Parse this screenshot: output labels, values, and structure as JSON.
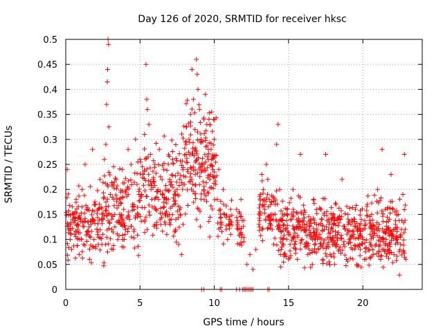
{
  "chart_data": {
    "type": "scatter",
    "title": "Day 126 of 2020, SRMTID for receiver hksc",
    "xlabel": "GPS time / hours",
    "ylabel": "SRMTID / TECUs",
    "xlim": [
      0,
      24
    ],
    "ylim": [
      0,
      0.5
    ],
    "x_ticks": [
      0,
      5,
      10,
      15,
      20
    ],
    "x_tick_labels": [
      "0",
      "5",
      "10",
      "15",
      "20"
    ],
    "y_ticks": [
      0,
      0.05,
      0.1,
      0.15,
      0.2,
      0.25,
      0.3,
      0.35,
      0.4,
      0.45,
      0.5
    ],
    "y_tick_labels": [
      "0",
      "0.05",
      "0.1",
      "0.15",
      "0.2",
      "0.25",
      "0.3",
      "0.35",
      "0.4",
      "0.45",
      "0.5"
    ],
    "grid": true,
    "marker": "+",
    "series": [
      {
        "name": "SRMTID",
        "color": "#ff0000",
        "points": [
          [
            0.1,
            0.24
          ],
          [
            0.2,
            0.13
          ],
          [
            0.3,
            0.1
          ],
          [
            0.4,
            0.08
          ],
          [
            0.5,
            0.15
          ],
          [
            0.6,
            0.11
          ],
          [
            0.7,
            0.18
          ],
          [
            0.8,
            0.12
          ],
          [
            0.9,
            0.07
          ],
          [
            1.0,
            0.14
          ],
          [
            1.1,
            0.2
          ],
          [
            1.2,
            0.09
          ],
          [
            1.3,
            0.25
          ],
          [
            1.4,
            0.16
          ],
          [
            1.5,
            0.11
          ],
          [
            1.6,
            0.06
          ],
          [
            1.7,
            0.13
          ],
          [
            1.8,
            0.28
          ],
          [
            1.9,
            0.1
          ],
          [
            2.0,
            0.17
          ],
          [
            2.1,
            0.12
          ],
          [
            2.2,
            0.09
          ],
          [
            2.3,
            0.22
          ],
          [
            2.4,
            0.14
          ],
          [
            2.5,
            0.11
          ],
          [
            2.6,
            0.26
          ],
          [
            2.7,
            0.29
          ],
          [
            2.75,
            0.37
          ],
          [
            2.8,
            0.415
          ],
          [
            2.82,
            0.44
          ],
          [
            2.85,
            0.5
          ],
          [
            2.88,
            0.49
          ],
          [
            2.9,
            0.325
          ],
          [
            3.0,
            0.19
          ],
          [
            3.1,
            0.12
          ],
          [
            3.2,
            0.08
          ],
          [
            3.3,
            0.15
          ],
          [
            3.4,
            0.22
          ],
          [
            3.5,
            0.1
          ],
          [
            3.6,
            0.18
          ],
          [
            3.7,
            0.13
          ],
          [
            3.8,
            0.24
          ],
          [
            3.9,
            0.16
          ],
          [
            4.0,
            0.11
          ],
          [
            4.1,
            0.2
          ],
          [
            4.2,
            0.28
          ],
          [
            4.3,
            0.14
          ],
          [
            4.4,
            0.25
          ],
          [
            4.5,
            0.17
          ],
          [
            4.6,
            0.12
          ],
          [
            4.7,
            0.3
          ],
          [
            4.8,
            0.21
          ],
          [
            4.9,
            0.15
          ],
          [
            5.0,
            0.26
          ],
          [
            5.1,
            0.19
          ],
          [
            5.2,
            0.23
          ],
          [
            5.3,
            0.31
          ],
          [
            5.4,
            0.45
          ],
          [
            5.45,
            0.38
          ],
          [
            5.5,
            0.36
          ],
          [
            5.6,
            0.33
          ],
          [
            5.7,
            0.27
          ],
          [
            5.8,
            0.18
          ],
          [
            5.9,
            0.22
          ],
          [
            6.0,
            0.25
          ],
          [
            6.1,
            0.16
          ],
          [
            6.2,
            0.2
          ],
          [
            6.3,
            0.28
          ],
          [
            6.4,
            0.13
          ],
          [
            6.5,
            0.19
          ],
          [
            6.6,
            0.24
          ],
          [
            6.7,
            0.15
          ],
          [
            6.8,
            0.11
          ],
          [
            6.9,
            0.18
          ],
          [
            7.0,
            0.22
          ],
          [
            7.1,
            0.14
          ],
          [
            7.2,
            0.26
          ],
          [
            7.3,
            0.17
          ],
          [
            7.4,
            0.12
          ],
          [
            7.5,
            0.2
          ],
          [
            7.6,
            0.09
          ],
          [
            7.7,
            0.15
          ],
          [
            7.8,
            0.07
          ],
          [
            7.9,
            0.13
          ],
          [
            8.0,
            0.21
          ],
          [
            8.1,
            0.27
          ],
          [
            8.2,
            0.24
          ],
          [
            8.3,
            0.3
          ],
          [
            8.4,
            0.35
          ],
          [
            8.5,
            0.44
          ],
          [
            8.6,
            0.38
          ],
          [
            8.7,
            0.32
          ],
          [
            8.8,
            0.46
          ],
          [
            8.85,
            0.43
          ],
          [
            8.9,
            0.4
          ],
          [
            9.0,
            0.36
          ],
          [
            9.1,
            0.3
          ],
          [
            9.2,
            0.25
          ],
          [
            9.3,
            0.34
          ],
          [
            9.4,
            0.39
          ],
          [
            9.5,
            0.33
          ],
          [
            9.6,
            0.28
          ],
          [
            9.7,
            0.22
          ],
          [
            9.8,
            0.26
          ],
          [
            9.9,
            0.24
          ],
          [
            10.0,
            0.3
          ],
          [
            10.1,
            0.21
          ],
          [
            10.2,
            0.18
          ],
          [
            10.3,
            0.24
          ],
          [
            10.4,
            0.16
          ],
          [
            10.5,
            0.13
          ],
          [
            10.6,
            0.2
          ],
          [
            10.7,
            0.15
          ],
          [
            10.8,
            0.12
          ],
          [
            10.9,
            0.1
          ],
          [
            11.0,
            0.14
          ],
          [
            11.1,
            0.11
          ],
          [
            11.5,
            0.16
          ],
          [
            11.6,
            0.12
          ],
          [
            11.7,
            0.09
          ],
          [
            11.8,
            0.18
          ],
          [
            12.2,
            0.05
          ],
          [
            12.4,
            0.07
          ],
          [
            12.6,
            0.04
          ],
          [
            12.8,
            0.08
          ],
          [
            13.0,
            0.13
          ],
          [
            13.1,
            0.19
          ],
          [
            13.2,
            0.23
          ],
          [
            13.3,
            0.2
          ],
          [
            13.4,
            0.16
          ],
          [
            13.5,
            0.25
          ],
          [
            13.6,
            0.22
          ],
          [
            13.7,
            0.18
          ],
          [
            13.8,
            0.14
          ],
          [
            13.9,
            0.12
          ],
          [
            14.0,
            0.09
          ],
          [
            14.1,
            0.17
          ],
          [
            14.2,
            0.29
          ],
          [
            14.3,
            0.33
          ],
          [
            14.4,
            0.2
          ],
          [
            14.5,
            0.14
          ],
          [
            14.6,
            0.1
          ],
          [
            14.7,
            0.07
          ],
          [
            14.8,
            0.12
          ],
          [
            14.9,
            0.16
          ],
          [
            15.0,
            0.11
          ],
          [
            15.1,
            0.09
          ],
          [
            15.2,
            0.14
          ],
          [
            15.3,
            0.2
          ],
          [
            15.4,
            0.12
          ],
          [
            15.5,
            0.08
          ],
          [
            15.6,
            0.06
          ],
          [
            15.7,
            0.13
          ],
          [
            15.8,
            0.27
          ],
          [
            15.9,
            0.1
          ],
          [
            16.0,
            0.15
          ],
          [
            16.1,
            0.09
          ],
          [
            16.2,
            0.12
          ],
          [
            16.3,
            0.07
          ],
          [
            16.4,
            0.11
          ],
          [
            16.5,
            0.14
          ],
          [
            16.6,
            0.05
          ],
          [
            16.7,
            0.18
          ],
          [
            16.8,
            0.1
          ],
          [
            16.9,
            0.13
          ],
          [
            17.0,
            0.08
          ],
          [
            17.1,
            0.11
          ],
          [
            17.2,
            0.16
          ],
          [
            17.3,
            0.06
          ],
          [
            17.4,
            0.12
          ],
          [
            17.5,
            0.27
          ],
          [
            17.6,
            0.09
          ],
          [
            17.7,
            0.14
          ],
          [
            17.8,
            0.07
          ],
          [
            17.9,
            0.1
          ],
          [
            18.0,
            0.13
          ],
          [
            18.1,
            0.05
          ],
          [
            18.2,
            0.17
          ],
          [
            18.3,
            0.11
          ],
          [
            18.4,
            0.08
          ],
          [
            18.5,
            0.14
          ],
          [
            18.6,
            0.22
          ],
          [
            18.7,
            0.09
          ],
          [
            18.8,
            0.12
          ],
          [
            18.9,
            0.06
          ],
          [
            19.0,
            0.15
          ],
          [
            19.1,
            0.1
          ],
          [
            19.2,
            0.13
          ],
          [
            19.3,
            0.08
          ],
          [
            19.4,
            0.11
          ],
          [
            19.5,
            0.16
          ],
          [
            19.6,
            0.05
          ],
          [
            19.7,
            0.12
          ],
          [
            19.8,
            0.09
          ],
          [
            19.9,
            0.14
          ],
          [
            20.0,
            0.1
          ],
          [
            20.1,
            0.06
          ],
          [
            20.2,
            0.13
          ],
          [
            20.3,
            0.17
          ],
          [
            20.4,
            0.08
          ],
          [
            20.5,
            0.11
          ],
          [
            20.6,
            0.15
          ],
          [
            20.7,
            0.07
          ],
          [
            20.8,
            0.12
          ],
          [
            20.9,
            0.09
          ],
          [
            21.0,
            0.2
          ],
          [
            21.1,
            0.13
          ],
          [
            21.2,
            0.06
          ],
          [
            21.3,
            0.28
          ],
          [
            21.4,
            0.1
          ],
          [
            21.5,
            0.16
          ],
          [
            21.6,
            0.12
          ],
          [
            21.7,
            0.08
          ],
          [
            21.8,
            0.14
          ],
          [
            21.9,
            0.23
          ],
          [
            22.0,
            0.11
          ],
          [
            22.1,
            0.07
          ],
          [
            22.2,
            0.13
          ],
          [
            22.3,
            0.1
          ],
          [
            22.4,
            0.15
          ],
          [
            22.5,
            0.08
          ],
          [
            22.6,
            0.12
          ],
          [
            22.7,
            0.19
          ],
          [
            22.8,
            0.27
          ],
          [
            9.15,
            0.0
          ],
          [
            9.3,
            0.0
          ],
          [
            10.4,
            0.0
          ],
          [
            10.5,
            0.0
          ],
          [
            11.5,
            0.0
          ],
          [
            11.7,
            0.0
          ],
          [
            11.9,
            0.0
          ],
          [
            12.0,
            0.0
          ],
          [
            12.1,
            0.0
          ],
          [
            12.2,
            0.0
          ],
          [
            12.3,
            0.0
          ],
          [
            12.4,
            0.0
          ],
          [
            12.5,
            0.0
          ],
          [
            12.6,
            0.0
          ],
          [
            13.6,
            0.0
          ],
          [
            13.7,
            0.0
          ]
        ],
        "density_segments": [
          {
            "x_start": 0.0,
            "x_end": 2.6,
            "y_min": 0.05,
            "y_max": 0.25,
            "center": 0.12,
            "count": 150
          },
          {
            "x_start": 2.6,
            "x_end": 5.0,
            "y_min": 0.05,
            "y_max": 0.29,
            "center": 0.15,
            "count": 130
          },
          {
            "x_start": 5.0,
            "x_end": 7.8,
            "y_min": 0.07,
            "y_max": 0.33,
            "center": 0.19,
            "count": 160
          },
          {
            "x_start": 7.8,
            "x_end": 10.2,
            "y_min": 0.09,
            "y_max": 0.42,
            "center": 0.24,
            "count": 170
          },
          {
            "x_start": 10.2,
            "x_end": 11.2,
            "y_min": 0.09,
            "y_max": 0.2,
            "center": 0.14,
            "count": 30
          },
          {
            "x_start": 11.5,
            "x_end": 12.0,
            "y_min": 0.06,
            "y_max": 0.19,
            "center": 0.12,
            "count": 25
          },
          {
            "x_start": 13.0,
            "x_end": 14.2,
            "y_min": 0.06,
            "y_max": 0.25,
            "center": 0.15,
            "count": 60
          },
          {
            "x_start": 14.2,
            "x_end": 17.0,
            "y_min": 0.04,
            "y_max": 0.22,
            "center": 0.11,
            "count": 170
          },
          {
            "x_start": 17.0,
            "x_end": 20.0,
            "y_min": 0.03,
            "y_max": 0.22,
            "center": 0.1,
            "count": 180
          },
          {
            "x_start": 20.0,
            "x_end": 22.9,
            "y_min": 0.03,
            "y_max": 0.22,
            "center": 0.1,
            "count": 170
          }
        ]
      }
    ]
  }
}
